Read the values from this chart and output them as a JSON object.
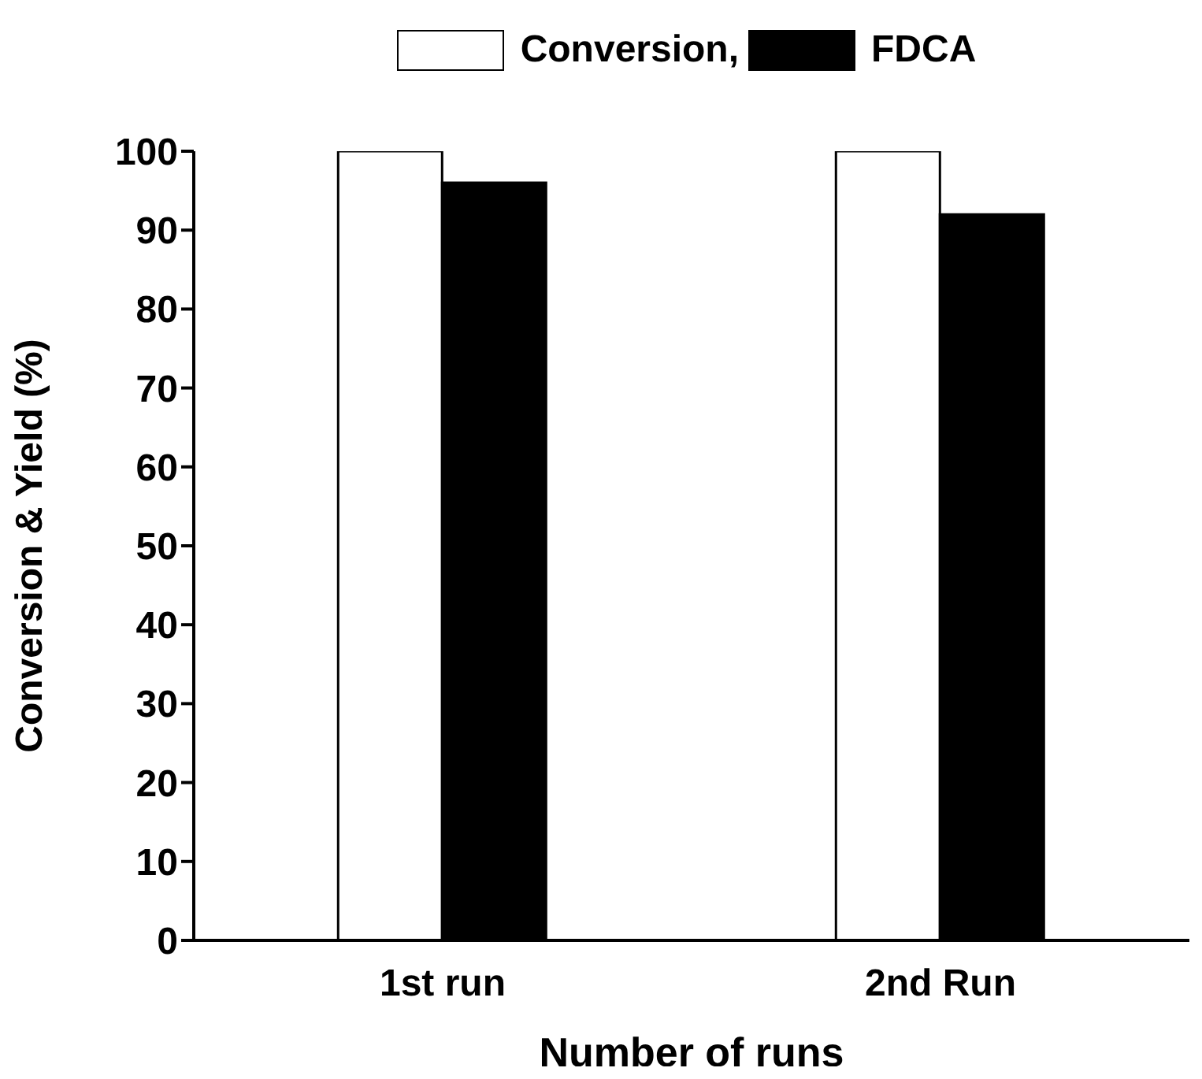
{
  "chart_data": {
    "type": "bar",
    "xlabel": "Number of runs",
    "ylabel": "Conversion & Yield (%)",
    "categories": [
      "1st run",
      "2nd Run"
    ],
    "series": [
      {
        "name": "Conversion,",
        "color": "#ffffff",
        "values": [
          100,
          100
        ]
      },
      {
        "name": "FDCA",
        "color": "#000000",
        "values": [
          96,
          92
        ]
      }
    ],
    "ylim": [
      0,
      100
    ],
    "yticks": [
      0,
      10,
      20,
      30,
      40,
      50,
      60,
      70,
      80,
      90,
      100
    ],
    "grid": false,
    "legend": "top"
  }
}
